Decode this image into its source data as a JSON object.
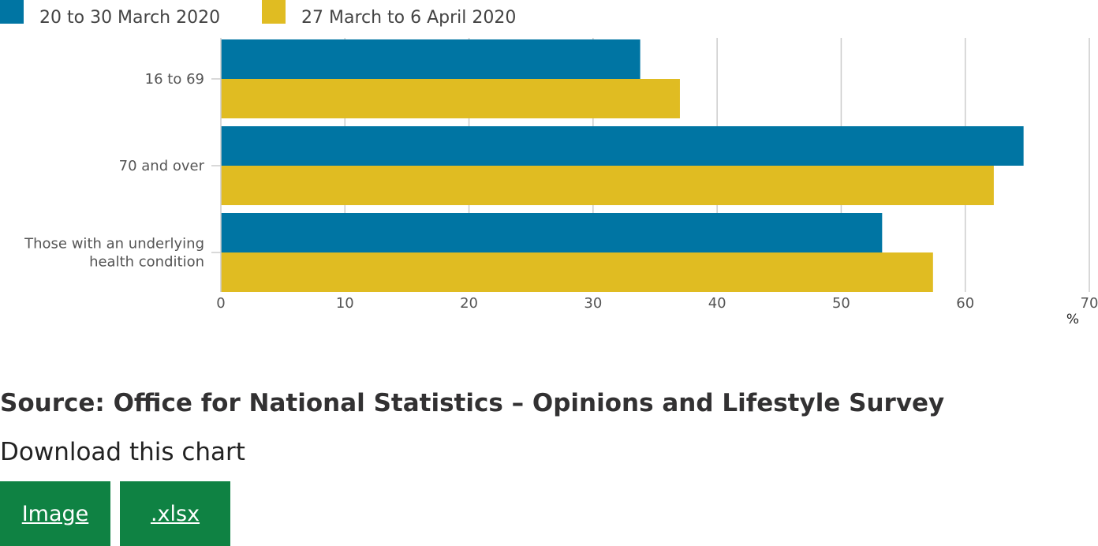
{
  "chart_data": {
    "type": "bar",
    "orientation": "horizontal",
    "categories": [
      "16 to 69",
      "70 and over",
      "Those with an underlying health condition"
    ],
    "category_lines": [
      [
        "16 to 69"
      ],
      [
        "70 and over"
      ],
      [
        "Those with an underlying",
        "health condition"
      ]
    ],
    "series": [
      {
        "name": "20 to 30 March 2020",
        "color": "#0075a3",
        "values": [
          33.8,
          64.7,
          53.3
        ]
      },
      {
        "name": "27 March to 6 April 2020",
        "color": "#e0bc22",
        "values": [
          37.0,
          62.3,
          57.4
        ]
      }
    ],
    "xlim": [
      0,
      70
    ],
    "xticks": [
      0,
      10,
      20,
      30,
      40,
      50,
      60,
      70
    ],
    "xunit": "%",
    "grid": true,
    "legend_position": "top-left"
  },
  "source_text": "Source: Office for National Statistics – Opinions and Lifestyle Survey",
  "download": {
    "heading": "Download this chart",
    "image_label": "Image",
    "xlsx_label": ".xlsx"
  }
}
